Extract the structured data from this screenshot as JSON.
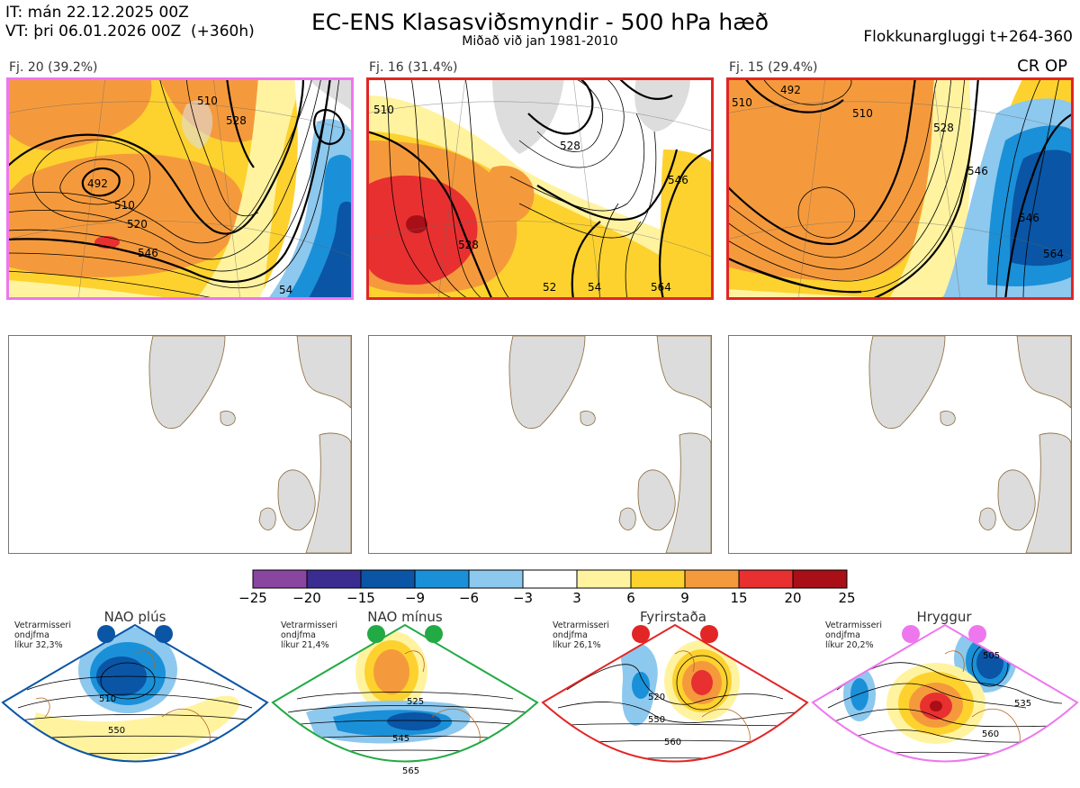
{
  "header": {
    "init_time": "IT: mán 22.12.2025 00Z",
    "valid_time": "VT: þri 06.01.2026 00Z  (+360h)",
    "title": "EC-ENS Klasasviðsmyndir - 500 hPa hæð",
    "subtitle": "Miðað við jan 1981-2010",
    "window": "Flokkunargluggi t+264-360",
    "corner_label": "CR OP"
  },
  "clusters": [
    {
      "label": "Fj. 20 (39.2%)",
      "frame_color": "#ee77ee",
      "contour_labels": [
        "510",
        "520",
        "546",
        "492",
        "510",
        "528",
        "54"
      ]
    },
    {
      "label": "Fj. 16 (31.4%)",
      "frame_color": "#e22525",
      "contour_labels": [
        "510",
        "528",
        "528",
        "546",
        "52",
        "54",
        "564"
      ]
    },
    {
      "label": "Fj. 15 (29.4%)",
      "frame_color": "#e22525",
      "contour_labels": [
        "510",
        "492",
        "510",
        "528",
        "546",
        "564",
        "546"
      ]
    }
  ],
  "colorbar": {
    "colors": [
      "#8a45a0",
      "#3a2c90",
      "#0a55a5",
      "#1a90d8",
      "#8dc8ee",
      "#ffffff",
      "#fff3a0",
      "#fdd22e",
      "#f59a3c",
      "#e83030",
      "#a80f16"
    ],
    "ticks": [
      "−25",
      "−20",
      "−15",
      "−9",
      "−6",
      "−3",
      "3",
      "6",
      "9",
      "15",
      "20",
      "25"
    ]
  },
  "regimes": [
    {
      "name": "NAO plús",
      "info_line1": "Vetrarmisseri",
      "info_line2": "ondjfma",
      "info_line3": "líkur 32,3%",
      "color": "#0a55a5",
      "contour_labels": [
        "510",
        "550"
      ]
    },
    {
      "name": "NAO mínus",
      "info_line1": "Vetrarmisseri",
      "info_line2": "ondjfma",
      "info_line3": "líkur 21,4%",
      "color": "#22aa44",
      "contour_labels": [
        "525",
        "545",
        "565"
      ]
    },
    {
      "name": "Fyrirstaða",
      "info_line1": "Vetrarmisseri",
      "info_line2": "ondjfma",
      "info_line3": "líkur 26,1%",
      "color": "#e22525",
      "contour_labels": [
        "520",
        "550",
        "560"
      ]
    },
    {
      "name": "Hryggur",
      "info_line1": "Vetrarmisseri",
      "info_line2": "ondjfma",
      "info_line3": "líkur 20,2%",
      "color": "#ee77ee",
      "contour_labels": [
        "505",
        "535",
        "560"
      ]
    }
  ]
}
